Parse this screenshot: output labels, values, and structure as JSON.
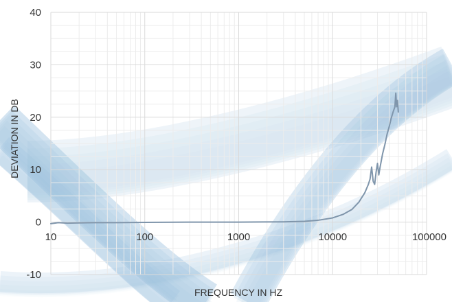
{
  "chart_data": {
    "type": "line",
    "xlabel": "FREQUENCY IN HZ",
    "ylabel": "DEVIATION IN DB",
    "x_scale": "log",
    "xlim": [
      10,
      100000
    ],
    "ylim": [
      -10,
      40
    ],
    "x_ticks": [
      10,
      100,
      1000,
      10000,
      100000
    ],
    "y_ticks": [
      -10,
      0,
      10,
      20,
      30,
      40
    ],
    "x_tick_labels": [
      "10",
      "100",
      "1000",
      "10000",
      "100000"
    ],
    "y_tick_labels": [
      "-10",
      "0",
      "10",
      "20",
      "30",
      "40"
    ],
    "grid": true,
    "legend": "none",
    "colors": {
      "line": "#7f95ab",
      "grid_major": "#dadada",
      "grid_minor": "#ececec",
      "wave": "#9fc4e0"
    },
    "series": [
      {
        "name": "",
        "points": [
          [
            10,
            -0.3
          ],
          [
            12,
            -0.1
          ],
          [
            15,
            -0.2
          ],
          [
            20,
            -0.15
          ],
          [
            30,
            -0.1
          ],
          [
            50,
            -0.1
          ],
          [
            100,
            -0.05
          ],
          [
            300,
            0
          ],
          [
            1000,
            0
          ],
          [
            3000,
            0.05
          ],
          [
            5000,
            0.15
          ],
          [
            7000,
            0.35
          ],
          [
            10000,
            0.8
          ],
          [
            13000,
            1.5
          ],
          [
            16000,
            2.4
          ],
          [
            19000,
            3.8
          ],
          [
            22000,
            5.6
          ],
          [
            24000,
            7.2
          ],
          [
            25000,
            8.2
          ],
          [
            26000,
            10.5
          ],
          [
            27000,
            7.8
          ],
          [
            28000,
            7.2
          ],
          [
            29000,
            9.5
          ],
          [
            30000,
            11.2
          ],
          [
            31000,
            9.0
          ],
          [
            32000,
            10.5
          ],
          [
            34000,
            13.0
          ],
          [
            36000,
            14.8
          ],
          [
            38000,
            16.8
          ],
          [
            40000,
            18.2
          ],
          [
            42000,
            19.8
          ],
          [
            44000,
            21.0
          ],
          [
            46000,
            22.0
          ],
          [
            47000,
            24.6
          ],
          [
            48000,
            22.0
          ],
          [
            49000,
            23.2
          ],
          [
            50000,
            21.0
          ]
        ]
      }
    ]
  }
}
